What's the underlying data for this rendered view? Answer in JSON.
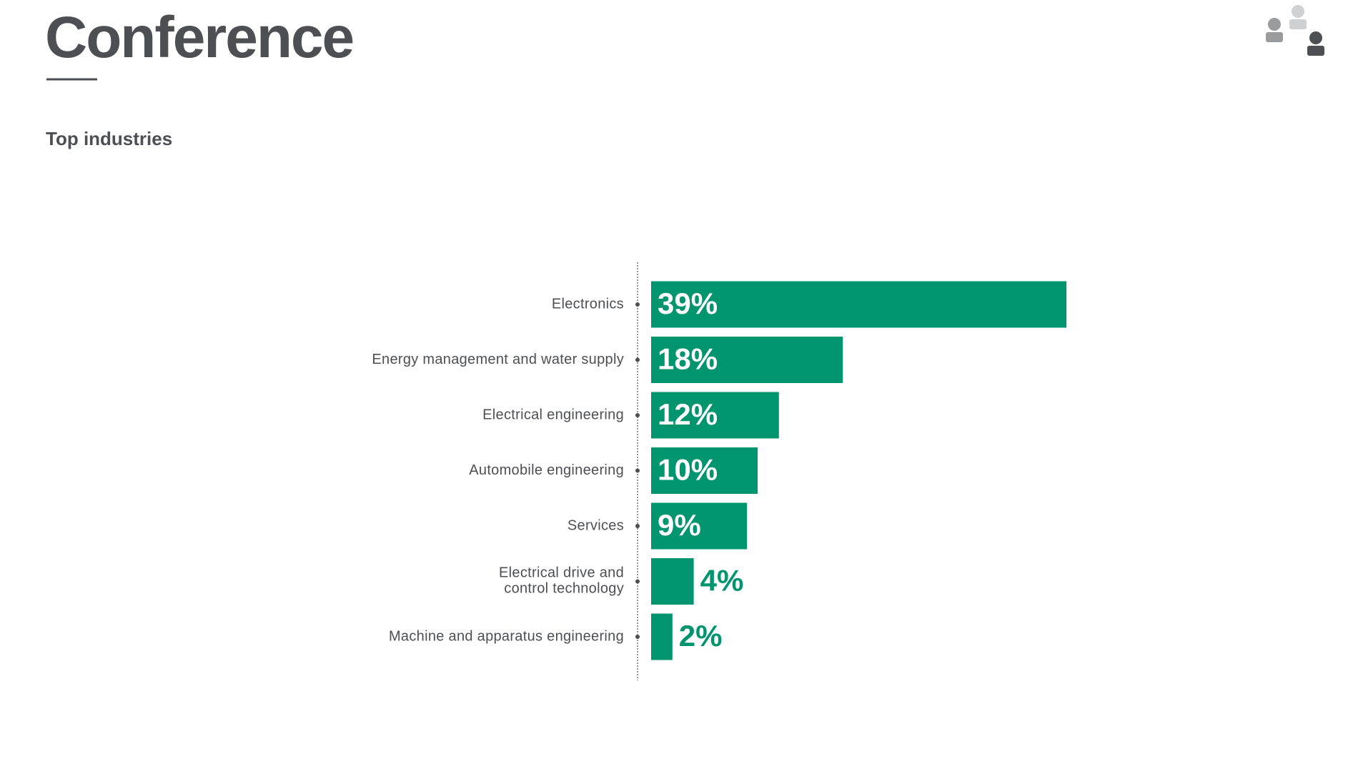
{
  "header": {
    "title": "Conference",
    "subtitle": "Top industries"
  },
  "chart_data": {
    "type": "bar",
    "orientation": "horizontal",
    "categories": [
      "Electronics",
      "Energy management and water supply",
      "Electrical engineering",
      "Automobile engineering",
      "Services",
      "Electrical drive and\ncontrol technology",
      "Machine and apparatus engineering"
    ],
    "values": [
      39,
      18,
      12,
      10,
      9,
      4,
      2
    ],
    "value_labels": [
      "39%",
      "18%",
      "12%",
      "10%",
      "9%",
      "4%",
      "2%"
    ],
    "color": "#00956f"
  }
}
